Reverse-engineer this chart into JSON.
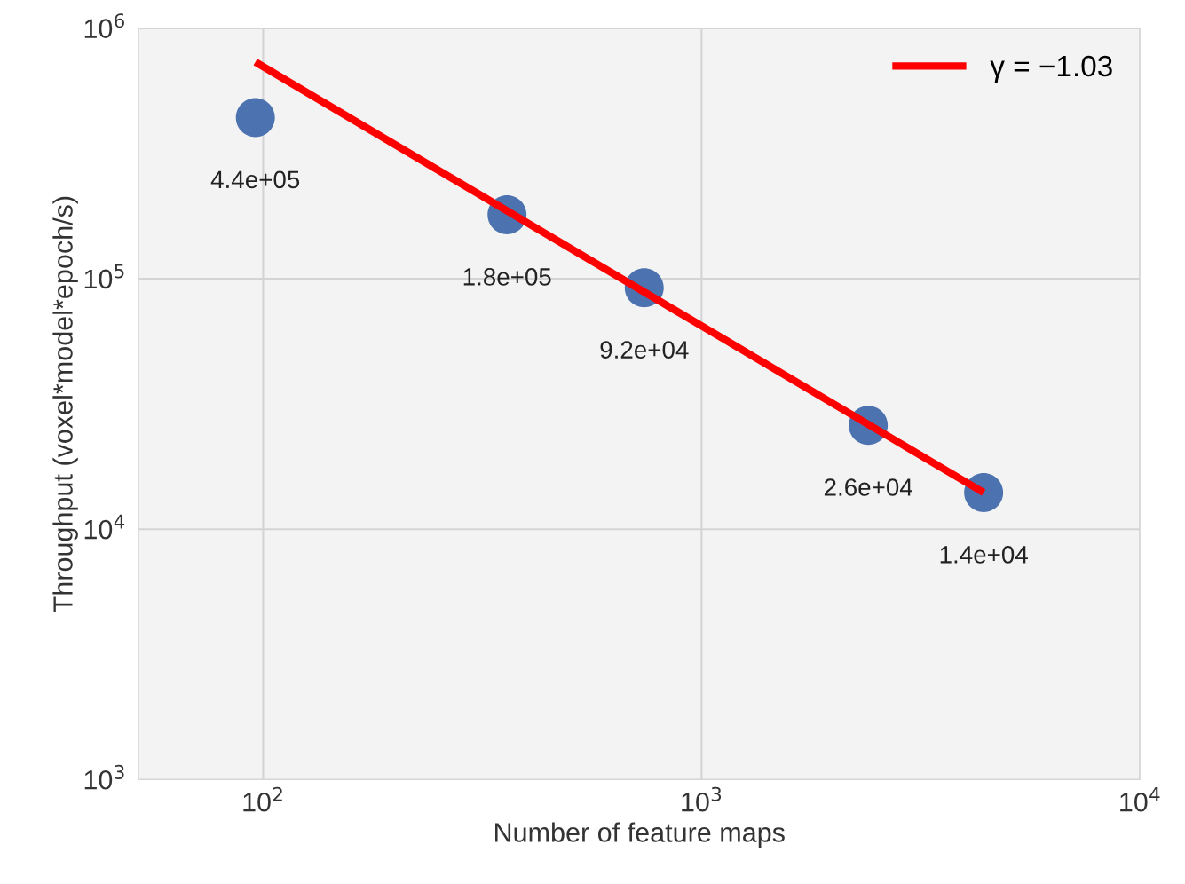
{
  "chart_data": {
    "type": "scatter",
    "xlabel": "Number of feature maps",
    "ylabel": "Throughput (voxel*model*epoch/s)",
    "log": "xy",
    "grid": true,
    "legend": "top right",
    "xlim": [
      52,
      10000
    ],
    "ylim": [
      1000,
      1000000
    ],
    "xticks": [
      {
        "value": 100,
        "label": "10$^{2}$"
      },
      {
        "value": 1000,
        "label": "10$^{3}$"
      },
      {
        "value": 10000,
        "label": "10$^{4}$"
      }
    ],
    "yticks": [
      {
        "value": 1000,
        "label": "10$^{3}$"
      },
      {
        "value": 10000,
        "label": "10$^{4}$"
      },
      {
        "value": 100000,
        "label": "10$^{5}$"
      },
      {
        "value": 1000000,
        "label": "10$^{6}$"
      }
    ],
    "series": [
      {
        "marker": "circle",
        "color": "#4c72b0",
        "x": [
          96,
          360,
          740,
          2400,
          4400
        ],
        "values": [
          440000,
          180000,
          92000,
          26000,
          14000
        ],
        "value_labels": [
          "4.4e+05",
          "1.8e+05",
          "9.2e+04",
          "2.6e+04",
          "1.4e+04"
        ]
      },
      {
        "type": "line",
        "name": "γ = −1.03",
        "marker": "none",
        "color": "#ff0000",
        "x": [
          96,
          4400
        ],
        "values": [
          733000,
          14000
        ]
      }
    ]
  }
}
